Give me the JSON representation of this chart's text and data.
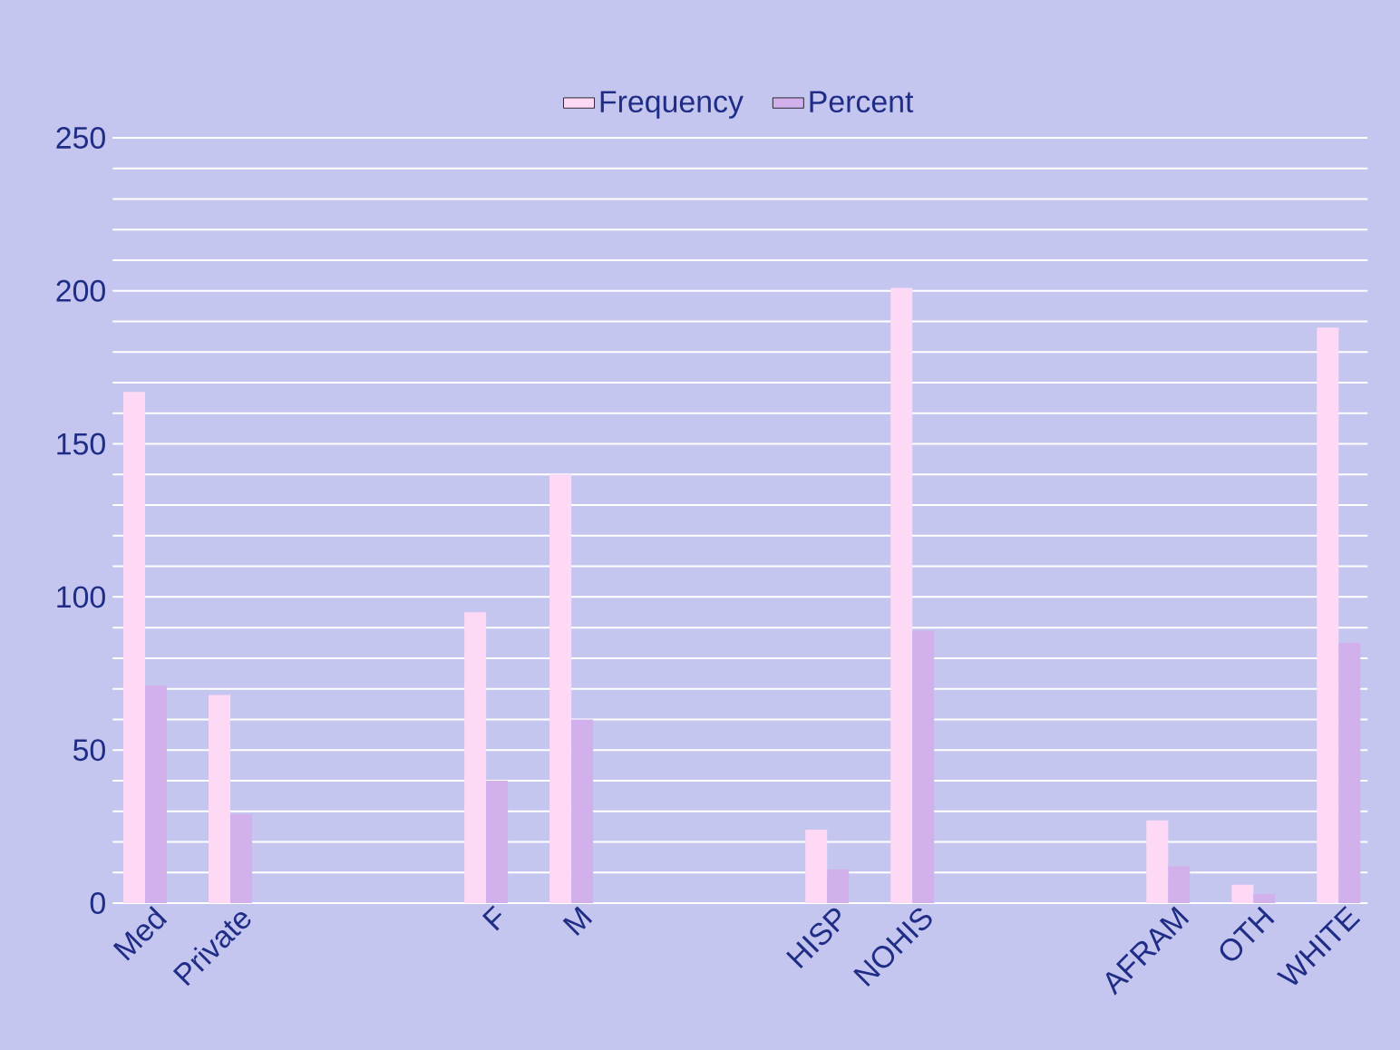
{
  "chart_data": {
    "type": "bar",
    "categories": [
      "Med",
      "Private",
      null,
      null,
      "F",
      "M",
      null,
      null,
      "HISP",
      "NOHIS",
      null,
      null,
      "AFRAM",
      "OTH",
      "WHITE"
    ],
    "series": [
      {
        "name": "Frequency",
        "color": "#fdd9f5",
        "values": [
          167,
          68,
          null,
          null,
          95,
          140,
          null,
          null,
          24,
          201,
          null,
          null,
          27,
          6,
          188
        ]
      },
      {
        "name": "Percent",
        "color": "#d1b0ec",
        "values": [
          71,
          29,
          null,
          null,
          40,
          60,
          null,
          null,
          11,
          89,
          null,
          null,
          12,
          3,
          85
        ]
      }
    ],
    "ylim": [
      0,
      250
    ],
    "yticks": [
      0,
      50,
      100,
      150,
      200,
      250
    ],
    "grid": "y",
    "legend": "top"
  }
}
